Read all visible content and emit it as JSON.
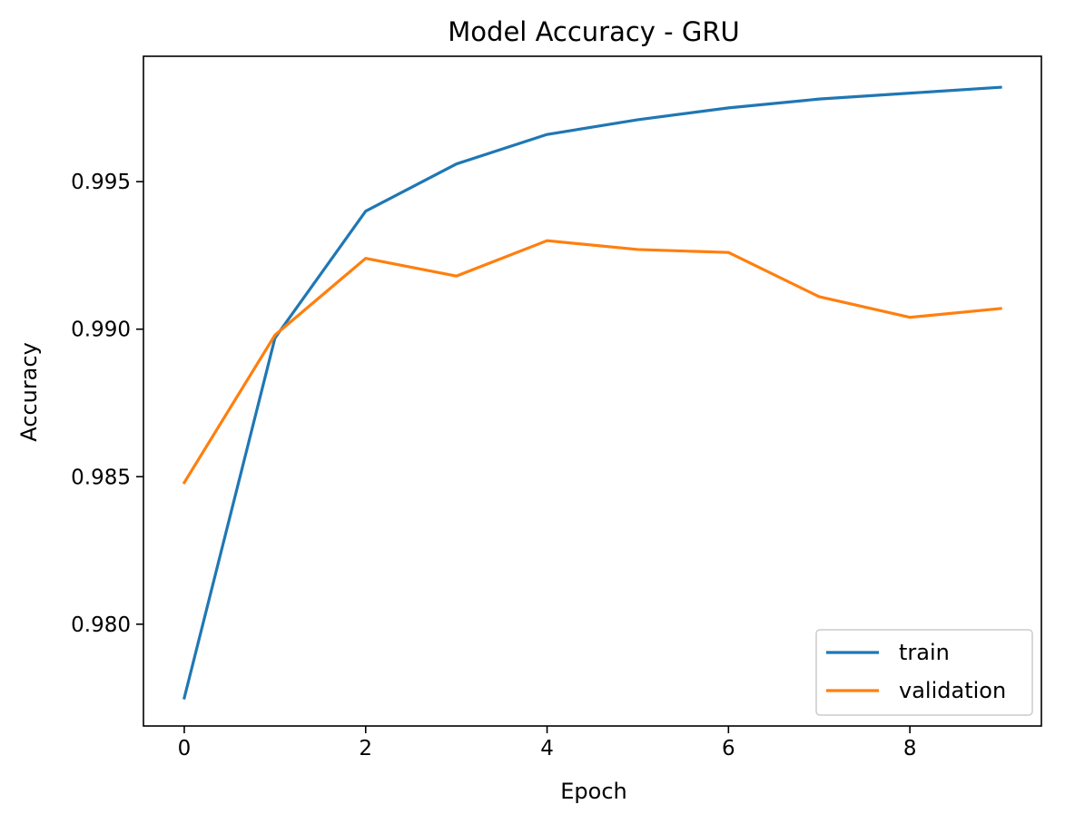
{
  "chart_data": {
    "type": "line",
    "title": "Model Accuracy - GRU",
    "xlabel": "Epoch",
    "ylabel": "Accuracy",
    "x": [
      0,
      1,
      2,
      3,
      4,
      5,
      6,
      7,
      8,
      9
    ],
    "xlim": [
      -0.45,
      9.45
    ],
    "ylim": [
      0.97655,
      0.99925
    ],
    "xticks": [
      0,
      2,
      4,
      6,
      8
    ],
    "xtick_labels": [
      "0",
      "2",
      "4",
      "6",
      "8"
    ],
    "yticks": [
      0.98,
      0.985,
      0.99,
      0.995
    ],
    "ytick_labels": [
      "0.980",
      "0.985",
      "0.990",
      "0.995"
    ],
    "grid": false,
    "legend_position": "lower-right",
    "series": [
      {
        "name": "train",
        "color": "#1f77b4",
        "values": [
          0.9775,
          0.9897,
          0.994,
          0.9956,
          0.9966,
          0.9971,
          0.9975,
          0.9978,
          0.998,
          0.9982
        ]
      },
      {
        "name": "validation",
        "color": "#ff7f0e",
        "values": [
          0.9848,
          0.9898,
          0.9924,
          0.9918,
          0.993,
          0.9927,
          0.9926,
          0.9911,
          0.9904,
          0.9907
        ]
      }
    ]
  }
}
